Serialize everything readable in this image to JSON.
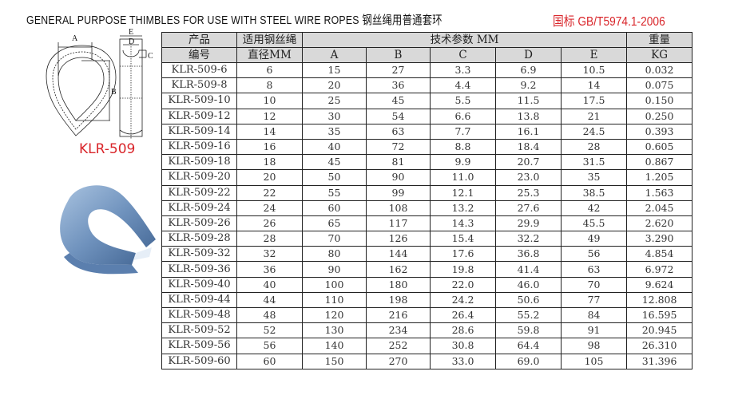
{
  "header": {
    "title": "GENERAL PURPOSE THIMBLES FOR USE WITH STEEL WIRE ROPES  钢丝绳用普通套环",
    "standard": "国标 GB/T5974.1-2006"
  },
  "diagram": {
    "model_label": "KLR-509",
    "dim_labels": {
      "A": "A",
      "B": "B",
      "C": "C",
      "D": "D",
      "E": "E"
    }
  },
  "colors": {
    "accent_red": "#d9262b",
    "header_bg": "#d9d9d9",
    "thimble_blue": "#7a9fc8"
  },
  "table": {
    "col_model_l1": "产品",
    "col_model_l2": "编号",
    "col_rope_l1": "适用钢丝绳",
    "col_rope_l2": "直径MM",
    "col_tech": "技术参数 MM",
    "col_weight_l1": "重量",
    "col_weight_l2": "KG",
    "sub_cols": [
      "A",
      "B",
      "C",
      "D",
      "E"
    ],
    "rows": [
      [
        "KLR-509-6",
        "6",
        "15",
        "27",
        "3.3",
        "6.9",
        "10.5",
        "0.032"
      ],
      [
        "KLR-509-8",
        "8",
        "20",
        "36",
        "4.4",
        "9.2",
        "14",
        "0.075"
      ],
      [
        "KLR-509-10",
        "10",
        "25",
        "45",
        "5.5",
        "11.5",
        "17.5",
        "0.150"
      ],
      [
        "KLR-509-12",
        "12",
        "30",
        "54",
        "6.6",
        "13.8",
        "21",
        "0.250"
      ],
      [
        "KLR-509-14",
        "14",
        "35",
        "63",
        "7.7",
        "16.1",
        "24.5",
        "0.393"
      ],
      [
        "KLR-509-16",
        "16",
        "40",
        "72",
        "8.8",
        "18.4",
        "28",
        "0.605"
      ],
      [
        "KLR-509-18",
        "18",
        "45",
        "81",
        "9.9",
        "20.7",
        "31.5",
        "0.867"
      ],
      [
        "KLR-509-20",
        "20",
        "50",
        "90",
        "11.0",
        "23.0",
        "35",
        "1.205"
      ],
      [
        "KLR-509-22",
        "22",
        "55",
        "99",
        "12.1",
        "25.3",
        "38.5",
        "1.563"
      ],
      [
        "KLR-509-24",
        "24",
        "60",
        "108",
        "13.2",
        "27.6",
        "42",
        "2.045"
      ],
      [
        "KLR-509-26",
        "26",
        "65",
        "117",
        "14.3",
        "29.9",
        "45.5",
        "2.620"
      ],
      [
        "KLR-509-28",
        "28",
        "70",
        "126",
        "15.4",
        "32.2",
        "49",
        "3.290"
      ],
      [
        "KLR-509-32",
        "32",
        "80",
        "144",
        "17.6",
        "36.8",
        "56",
        "4.854"
      ],
      [
        "KLR-509-36",
        "36",
        "90",
        "162",
        "19.8",
        "41.4",
        "63",
        "6.972"
      ],
      [
        "KLR-509-40",
        "40",
        "100",
        "180",
        "22.0",
        "46.0",
        "70",
        "9.624"
      ],
      [
        "KLR-509-44",
        "44",
        "110",
        "198",
        "24.2",
        "50.6",
        "77",
        "12.808"
      ],
      [
        "KLR-509-48",
        "48",
        "120",
        "216",
        "26.4",
        "55.2",
        "84",
        "16.595"
      ],
      [
        "KLR-509-52",
        "52",
        "130",
        "234",
        "28.6",
        "59.8",
        "91",
        "20.945"
      ],
      [
        "KLR-509-56",
        "56",
        "140",
        "252",
        "30.8",
        "64.4",
        "98",
        "26.310"
      ],
      [
        "KLR-509-60",
        "60",
        "150",
        "270",
        "33.0",
        "69.0",
        "105",
        "31.396"
      ]
    ]
  }
}
